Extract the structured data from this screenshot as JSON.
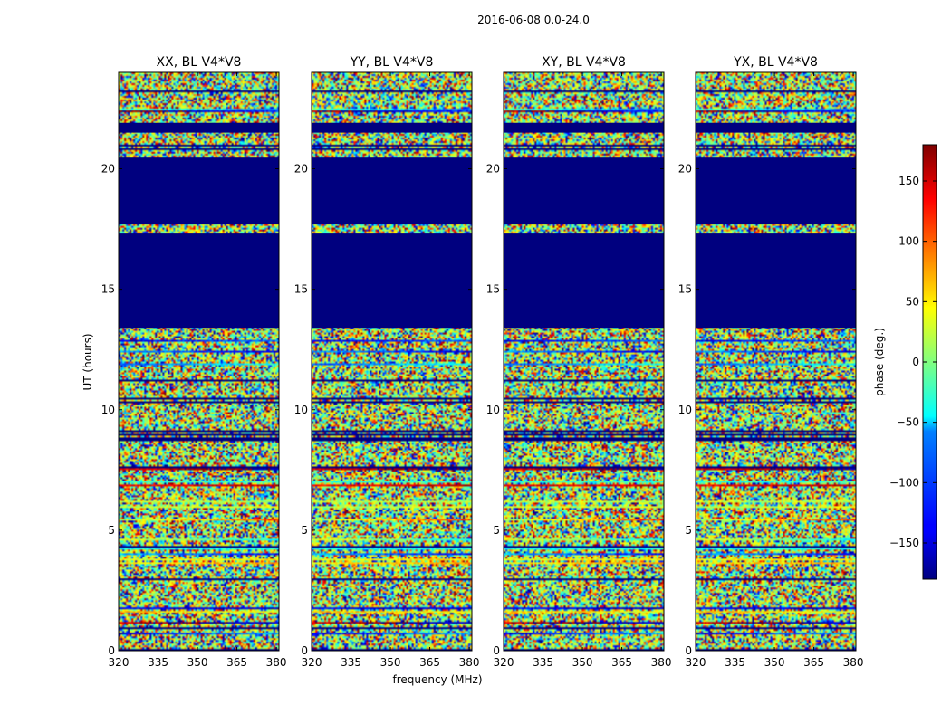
{
  "suptitle": "2016-06-08 0.0-24.0",
  "chart_data": {
    "type": "heatmap",
    "panels": [
      {
        "title": "XX, BL V4*V8",
        "key": "xx"
      },
      {
        "title": "YY, BL V4*V8",
        "key": "yy"
      },
      {
        "title": "XY, BL V4*V8",
        "key": "xy"
      },
      {
        "title": "YX, BL V4*V8",
        "key": "yx"
      }
    ],
    "xlabel": "frequency (MHz)",
    "ylabel": "UT (hours)",
    "xlim": [
      320,
      381
    ],
    "ylim": [
      0,
      24
    ],
    "xticks": [
      320,
      335,
      350,
      365,
      380
    ],
    "yticks": [
      0,
      5,
      10,
      15,
      20
    ],
    "flagged_ut_ranges": [
      [
        13.4,
        17.3
      ],
      [
        17.7,
        20.4
      ],
      [
        21.5,
        21.9
      ]
    ],
    "colorbar": {
      "label": "phase (deg.)",
      "range": [
        -180,
        180
      ],
      "ticks": [
        150,
        100,
        50,
        0,
        -50,
        -100,
        -150
      ],
      "tick_labels": [
        "150",
        "100",
        "50",
        "0",
        "−50",
        "−100",
        "−150"
      ],
      "colormap": "jet",
      "extra_text": "....."
    },
    "colors": {
      "flagged": "#00007f",
      "frame": "#000000"
    }
  }
}
